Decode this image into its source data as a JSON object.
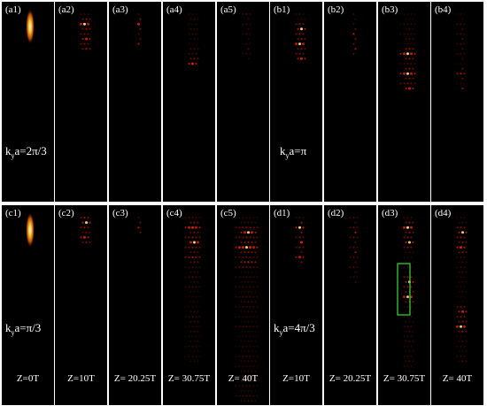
{
  "figure": {
    "rows": [
      {
        "panels": [
          {
            "label": "(a1)",
            "kind": "input"
          },
          {
            "label": "(a2)",
            "kind": "spots",
            "pattern": [
              [
                2,
                0.95
              ],
              [
                5,
                0.8
              ],
              [
                7,
                0.65
              ],
              [
                3,
                0.55
              ]
            ],
            "rows": 8,
            "spread": 3
          },
          {
            "label": "(a3)",
            "kind": "spots",
            "pattern": [
              [
                2,
                0.8
              ],
              [
                6,
                0.6
              ]
            ],
            "rows": 7,
            "spread": 1
          },
          {
            "label": "(a4)",
            "kind": "spots",
            "pattern": [
              [
                10,
                0.85
              ],
              [
                14,
                0.95
              ],
              [
                16,
                0.8
              ],
              [
                13,
                0.6
              ]
            ],
            "rows": 11,
            "spread": 3
          },
          {
            "label": "(a5)",
            "kind": "spots",
            "pattern": [
              [
                15,
                0.85
              ],
              [
                18,
                0.9
              ],
              [
                20,
                0.7
              ]
            ],
            "rows": 10,
            "spread": 2
          },
          {
            "label": "(b1)",
            "kind": "spots",
            "pattern": [
              [
                3,
                0.95
              ],
              [
                6,
                0.9
              ],
              [
                9,
                0.8
              ]
            ],
            "rows": 10,
            "spread": 3
          },
          {
            "label": "(b2)",
            "kind": "spots",
            "pattern": [
              [
                4,
                0.7
              ],
              [
                7,
                0.6
              ]
            ],
            "rows": 9,
            "spread": 1
          },
          {
            "label": "(b3)",
            "kind": "spots",
            "pattern": [
              [
                8,
                0.95
              ],
              [
                12,
                0.9
              ],
              [
                15,
                0.8
              ],
              [
                18,
                0.5
              ]
            ],
            "rows": 16,
            "spread": 4
          },
          {
            "label": "(b4)",
            "kind": "spots",
            "pattern": [
              [
                12,
                0.7
              ],
              [
                16,
                0.95
              ],
              [
                19,
                0.8
              ]
            ],
            "rows": 16,
            "spread": 2
          }
        ],
        "k_label": [
          {
            "prefix": "k",
            "sub": "y",
            "suffix": "a=2π/3"
          },
          {
            "prefix": "k",
            "sub": "y",
            "suffix": "a=π"
          }
        ]
      },
      {
        "panels": [
          {
            "label": "(c1)",
            "kind": "input"
          },
          {
            "label": "(c2)",
            "kind": "spots",
            "pattern": [
              [
                1,
                0.95
              ],
              [
                4,
                0.8
              ],
              [
                6,
                0.6
              ]
            ],
            "rows": 6,
            "spread": 3
          },
          {
            "label": "(c3)",
            "kind": "spots",
            "pattern": [
              [
                2,
                0.7
              ],
              [
                5,
                0.5
              ]
            ],
            "rows": 4,
            "spread": 1
          },
          {
            "label": "(c4)",
            "kind": "spots",
            "pattern": [
              [
                2,
                0.85
              ],
              [
                5,
                0.95
              ],
              [
                8,
                0.7
              ]
            ],
            "rows": 30,
            "spread": 4
          },
          {
            "label": "(c5)",
            "kind": "spots",
            "pattern": [
              [
                3,
                0.9
              ],
              [
                6,
                0.95
              ],
              [
                9,
                0.7
              ]
            ],
            "rows": 40,
            "spread": 6
          },
          {
            "label": "(d1)",
            "kind": "spots",
            "pattern": [
              [
                2,
                0.95
              ],
              [
                5,
                0.85
              ],
              [
                8,
                0.75
              ]
            ],
            "rows": 10,
            "spread": 2
          },
          {
            "label": "(d2)",
            "kind": "spots",
            "pattern": [
              [
                3,
                0.7
              ],
              [
                7,
                0.55
              ]
            ],
            "rows": 14,
            "spread": 2
          },
          {
            "label": "(d3)",
            "kind": "spots",
            "pattern": [
              [
                2,
                0.95
              ],
              [
                5,
                0.9
              ],
              [
                13,
                0.95
              ],
              [
                16,
                0.9
              ]
            ],
            "rows": 32,
            "spread": 3
          },
          {
            "label": "(d4)",
            "kind": "spots",
            "pattern": [
              [
                3,
                0.9
              ],
              [
                6,
                0.85
              ],
              [
                19,
                0.8
              ],
              [
                22,
                0.9
              ]
            ],
            "rows": 30,
            "spread": 3
          }
        ],
        "z_labels": [
          "Z=0T",
          "Z=10T",
          "Z= 20.25T",
          "Z= 30.75T",
          "Z= 40T",
          "Z=10T",
          "Z= 20.25T",
          "Z= 30.75T",
          "Z= 40T"
        ],
        "k_label": [
          {
            "prefix": "k",
            "sub": "y",
            "suffix": "a=π/3"
          },
          {
            "prefix": "k",
            "sub": "y",
            "suffix": "a=4π/3"
          }
        ]
      }
    ],
    "highlight_box_color": "#33cc33",
    "spot_color": "#ff2200",
    "input_beam_color": "#ffcc33"
  }
}
